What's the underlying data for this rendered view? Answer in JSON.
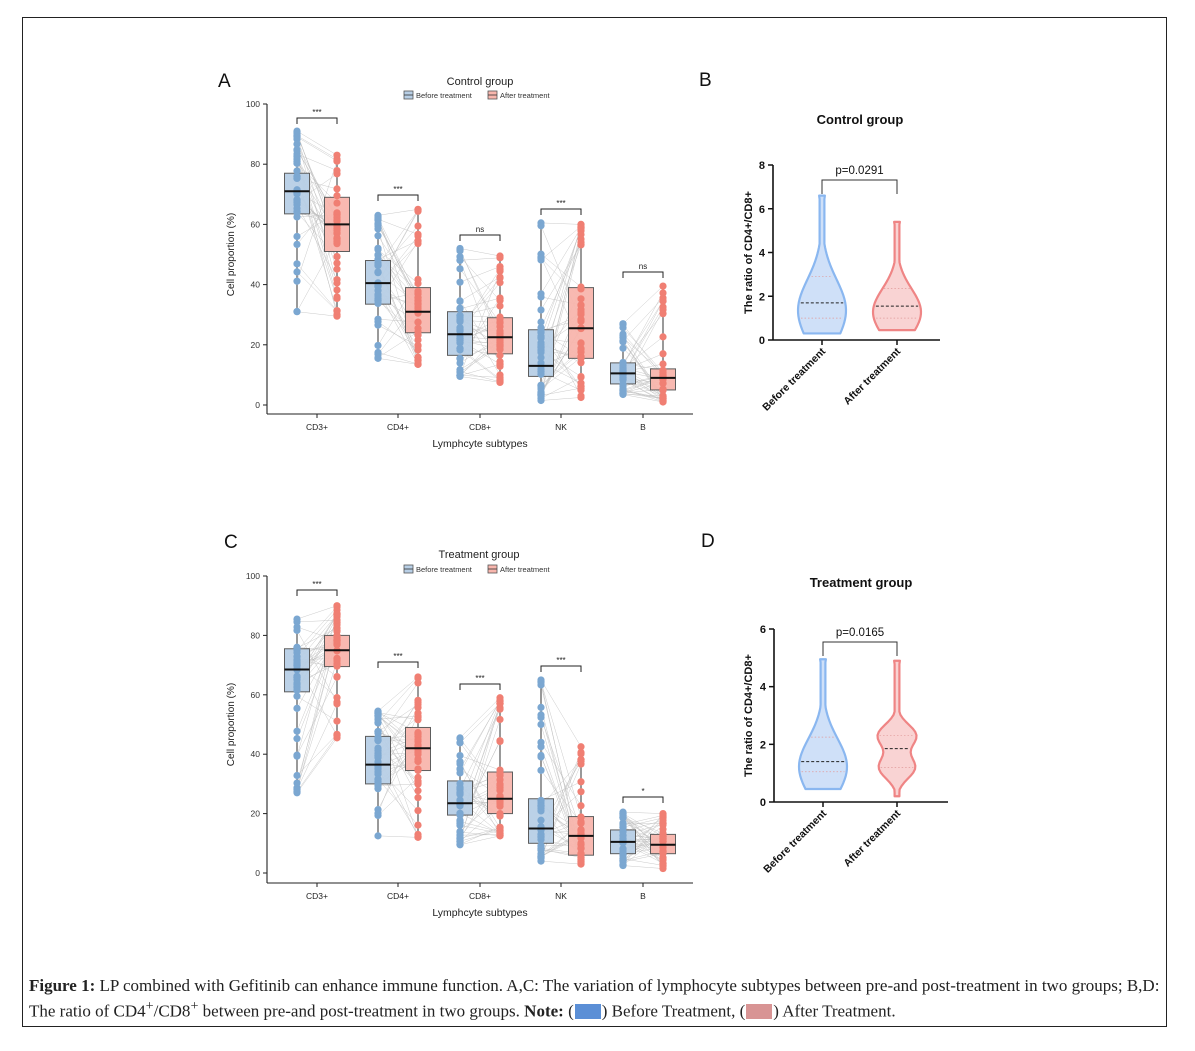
{
  "colors": {
    "before": "#7ba7d1",
    "before_fill": "#b8cfe6",
    "after": "#f07f73",
    "after_fill": "#f8b6ad",
    "violin_before": "#8ab7f0",
    "violin_before_fill": "#cfe0f8",
    "violin_after": "#ef8585",
    "violin_after_fill": "#f9d3d3",
    "note_before": "#5b8fd6",
    "note_after": "#d89494"
  },
  "caption": {
    "label": "Figure 1:",
    "text": " LP combined with Gefitinib can enhance immune function. A,C: The variation of lymphocyte subtypes between pre-and post-treatment in two groups; B,D: The ratio of CD4",
    "sup1": "+",
    "mid": "/CD8",
    "sup2": "+",
    "text2": " between pre-and post-treatment in two groups. ",
    "note_label": "Note:",
    "note_open": " (",
    "note_before": ") Before Treatment, (",
    "note_after": ") After Treatment."
  },
  "chart_data": [
    {
      "panel": "A",
      "type": "box",
      "title": "Control group",
      "legend": [
        "Before treatment",
        "After treatment"
      ],
      "legend_position": "top",
      "xlabel": "Lymphcyte subtypes",
      "ylabel": "Cell proportion (%)",
      "ylim": [
        0,
        100
      ],
      "yticks": [
        0,
        20,
        40,
        60,
        80,
        100
      ],
      "categories": [
        "CD3+",
        "CD4+",
        "CD8+",
        "NK",
        "B"
      ],
      "series": [
        {
          "name": "Before treatment",
          "boxes": [
            {
              "min": 31,
              "q1": 63.5,
              "median": 71,
              "q3": 77,
              "max": 91
            },
            {
              "min": 15.5,
              "q1": 33.5,
              "median": 40.5,
              "q3": 48,
              "max": 63
            },
            {
              "min": 9.5,
              "q1": 16.5,
              "median": 23.5,
              "q3": 31,
              "max": 52
            },
            {
              "min": 1.5,
              "q1": 9.5,
              "median": 13,
              "q3": 25,
              "max": 60.5
            },
            {
              "min": 3.5,
              "q1": 7,
              "median": 10.5,
              "q3": 14,
              "max": 27
            }
          ]
        },
        {
          "name": "After treatment",
          "boxes": [
            {
              "min": 29.5,
              "q1": 51,
              "median": 60,
              "q3": 69,
              "max": 83
            },
            {
              "min": 13.5,
              "q1": 24,
              "median": 31,
              "q3": 39,
              "max": 65
            },
            {
              "min": 7.5,
              "q1": 17,
              "median": 22.5,
              "q3": 29,
              "max": 49.5
            },
            {
              "min": 2.5,
              "q1": 15.5,
              "median": 25.5,
              "q3": 39,
              "max": 60
            },
            {
              "min": 1,
              "q1": 5,
              "median": 9,
              "q3": 12,
              "max": 39.5
            }
          ]
        }
      ],
      "significance": [
        "***",
        "***",
        "ns",
        "***",
        "ns"
      ]
    },
    {
      "panel": "B",
      "type": "violin",
      "title": "Control group",
      "ylabel": "The ratio of CD4+/CD8+",
      "ylim": [
        0,
        8
      ],
      "yticks": [
        0,
        2,
        4,
        6,
        8
      ],
      "categories": [
        "Before treatment",
        "After treatment"
      ],
      "violins": [
        {
          "min": 0.3,
          "q1": 1.0,
          "median": 1.7,
          "q3": 2.9,
          "max": 6.6
        },
        {
          "min": 0.45,
          "q1": 1.0,
          "median": 1.55,
          "q3": 2.35,
          "max": 5.4
        }
      ],
      "annotation": "p=0.0291"
    },
    {
      "panel": "C",
      "type": "box",
      "title": "Treatment group",
      "legend": [
        "Before treatment",
        "After treatment"
      ],
      "legend_position": "top",
      "xlabel": "Lymphcyte subtypes",
      "ylabel": "Cell proportion (%)",
      "ylim": [
        0,
        100
      ],
      "yticks": [
        0,
        20,
        40,
        60,
        80,
        100
      ],
      "categories": [
        "CD3+",
        "CD4+",
        "CD8+",
        "NK",
        "B"
      ],
      "series": [
        {
          "name": "Before treatment",
          "boxes": [
            {
              "min": 27,
              "q1": 61,
              "median": 68.5,
              "q3": 75.5,
              "max": 85.5
            },
            {
              "min": 12.5,
              "q1": 30,
              "median": 36.5,
              "q3": 46,
              "max": 54.5
            },
            {
              "min": 9.5,
              "q1": 19.5,
              "median": 23.5,
              "q3": 31,
              "max": 45.5
            },
            {
              "min": 4,
              "q1": 10,
              "median": 15,
              "q3": 25,
              "max": 65
            },
            {
              "min": 2.5,
              "q1": 6.5,
              "median": 10.5,
              "q3": 14.5,
              "max": 20.5
            }
          ]
        },
        {
          "name": "After treatment",
          "boxes": [
            {
              "min": 45.5,
              "q1": 69.5,
              "median": 75,
              "q3": 80,
              "max": 90
            },
            {
              "min": 12,
              "q1": 34.5,
              "median": 42,
              "q3": 49,
              "max": 66
            },
            {
              "min": 12.5,
              "q1": 20,
              "median": 25,
              "q3": 34,
              "max": 59
            },
            {
              "min": 3,
              "q1": 6,
              "median": 12.5,
              "q3": 19,
              "max": 42.5
            },
            {
              "min": 1.5,
              "q1": 6.5,
              "median": 9.5,
              "q3": 13,
              "max": 20
            }
          ]
        }
      ],
      "significance": [
        "***",
        "***",
        "***",
        "***",
        "*"
      ]
    },
    {
      "panel": "D",
      "type": "violin",
      "title": "Treatment group",
      "ylabel": "The ratio of CD4+/CD8+",
      "ylim": [
        0,
        6
      ],
      "yticks": [
        0,
        2,
        4,
        6
      ],
      "categories": [
        "Before treatment",
        "After treatment"
      ],
      "violins": [
        {
          "min": 0.45,
          "q1": 1.05,
          "median": 1.4,
          "q3": 2.25,
          "max": 4.95
        },
        {
          "min": 0.2,
          "q1": 1.2,
          "median": 1.85,
          "q3": 2.3,
          "max": 4.9
        }
      ],
      "annotation": "p=0.0165"
    }
  ]
}
